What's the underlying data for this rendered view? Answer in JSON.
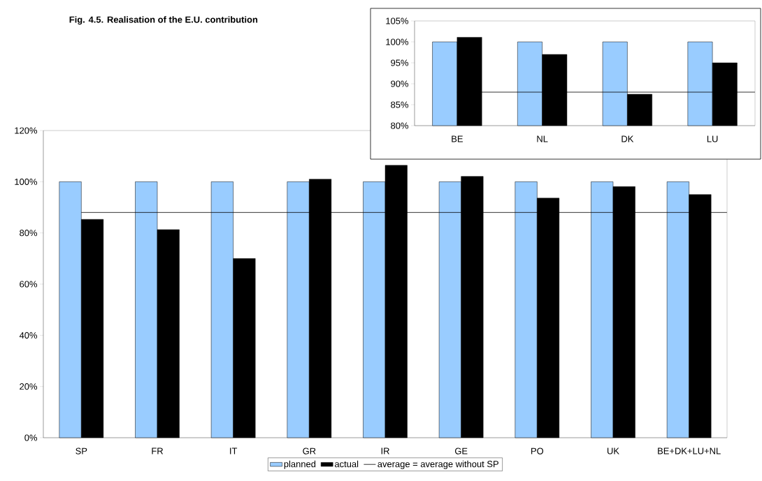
{
  "chart_data": [
    {
      "type": "bar",
      "title": "Fig. 4.5. Realisation of the E.U. contribution",
      "categories": [
        "SP",
        "FR",
        "IT",
        "GR",
        "IR",
        "GE",
        "PO",
        "UK",
        "BE+DK+LU+NL"
      ],
      "series": [
        {
          "name": "planned",
          "color": "#99ccff",
          "values": [
            100,
            100,
            100,
            100,
            100,
            100,
            100,
            100,
            100
          ]
        },
        {
          "name": "actual",
          "color": "#000000",
          "values": [
            85.3,
            81.3,
            70.0,
            101.0,
            106.4,
            102.1,
            93.6,
            98.1,
            95.0
          ]
        }
      ],
      "ylim": [
        0,
        120
      ],
      "yticks": [
        {
          "value": 0,
          "label": "0%"
        },
        {
          "value": 20,
          "label": "20%"
        },
        {
          "value": 40,
          "label": "40%"
        },
        {
          "value": 60,
          "label": "60%"
        },
        {
          "value": 80,
          "label": "80%"
        },
        {
          "value": 100,
          "label": "100%"
        },
        {
          "value": 120,
          "label": "120%"
        }
      ],
      "ref_lines": [
        {
          "axis": "y",
          "value": 88,
          "label": "average = average without SP",
          "color": "#000000"
        }
      ],
      "legend": "bottom"
    },
    {
      "type": "bar",
      "categories": [
        "BE",
        "NL",
        "DK",
        "LU"
      ],
      "series": [
        {
          "color": "#99ccff",
          "values": [
            100,
            100,
            100,
            100
          ]
        },
        {
          "color": "#000000",
          "values": [
            101.1,
            97.0,
            87.5,
            95.0
          ]
        }
      ],
      "ylim": [
        80,
        105
      ],
      "yticks": [
        {
          "value": 80,
          "label": "80%"
        },
        {
          "value": 85,
          "label": "85%"
        },
        {
          "value": 90,
          "label": "90%"
        },
        {
          "value": 95,
          "label": "95%"
        },
        {
          "value": 100,
          "label": "100%"
        },
        {
          "value": 105,
          "label": "105%"
        }
      ],
      "ref_lines": [
        {
          "axis": "y",
          "value": 88,
          "color": "#000000"
        }
      ]
    }
  ]
}
